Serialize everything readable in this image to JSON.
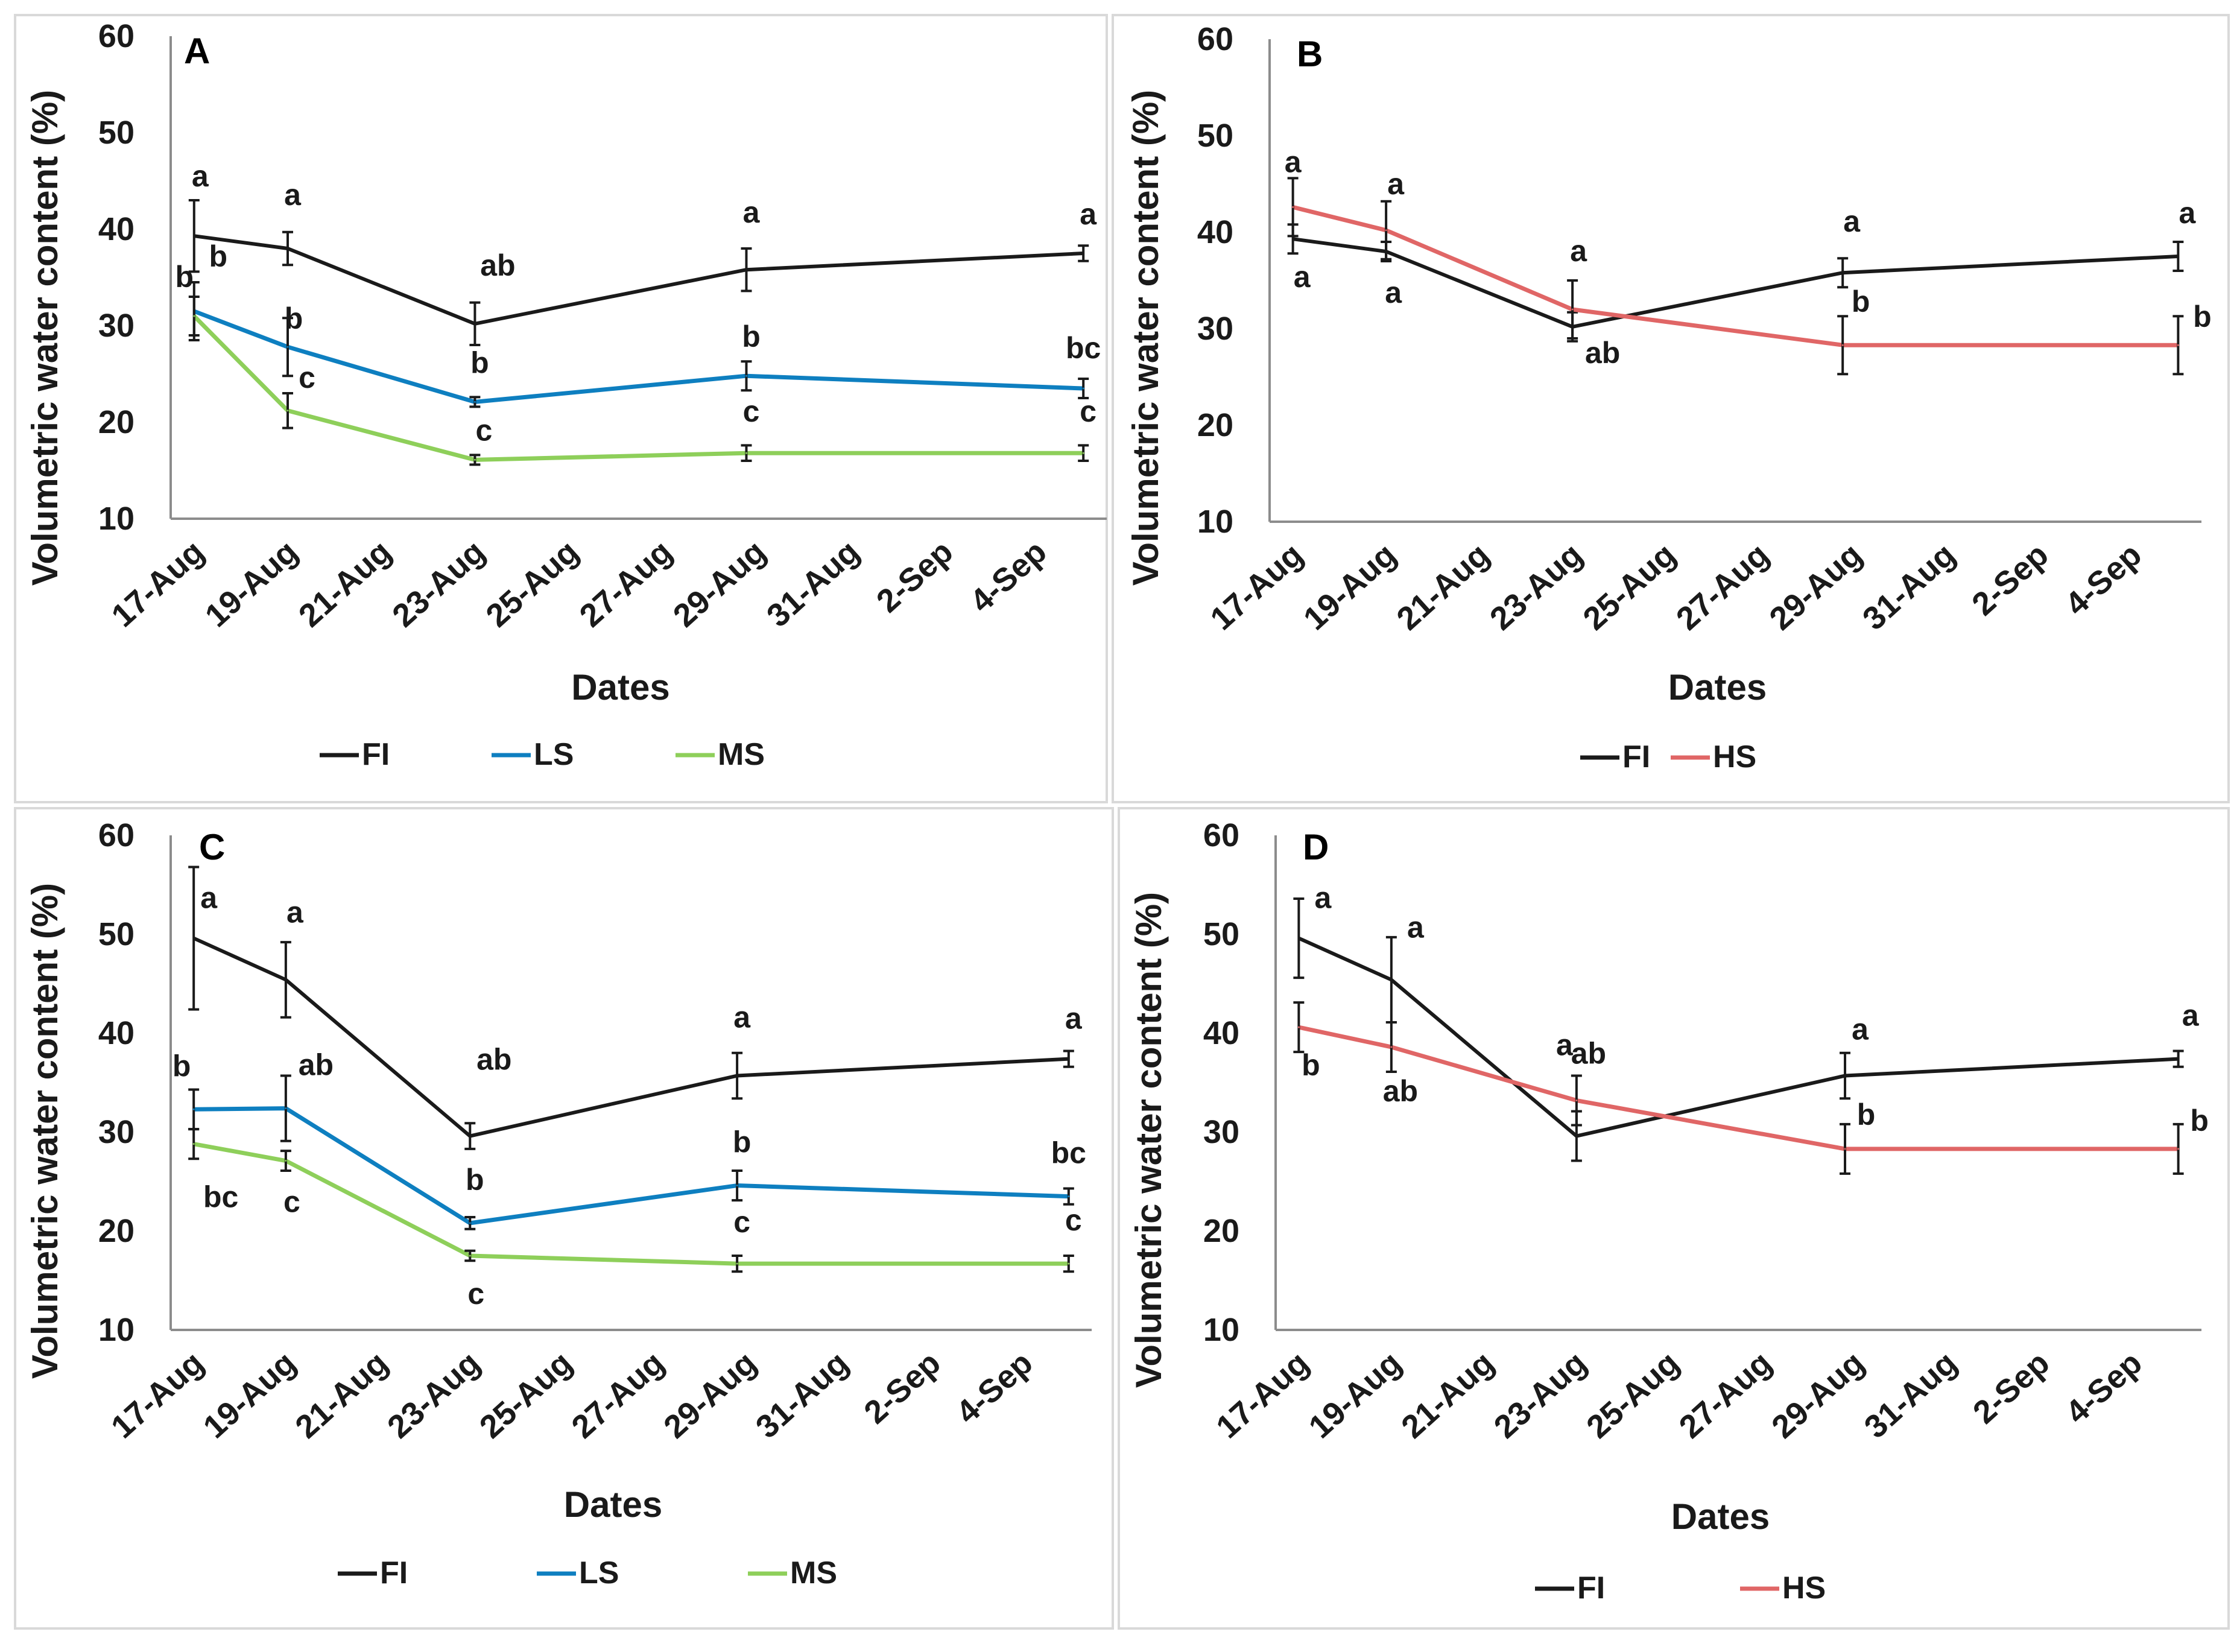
{
  "figure": {
    "description_title": ""
  },
  "chart_data": [
    {
      "panel": "A",
      "type": "line",
      "xlabel": "Dates",
      "ylabel": "Volumetric water content (%)",
      "ylim": [
        10,
        60
      ],
      "yticks": [
        10,
        20,
        30,
        40,
        50,
        60
      ],
      "xticks": [
        "17-Aug",
        "19-Aug",
        "21-Aug",
        "23-Aug",
        "25-Aug",
        "27-Aug",
        "29-Aug",
        "31-Aug",
        "2-Sep",
        "4-Sep"
      ],
      "xdays": [
        17,
        19,
        21,
        23,
        25,
        27,
        29,
        31,
        33,
        35
      ],
      "xlim_days": [
        16.5,
        36.5
      ],
      "legend": [
        "FI",
        "LS",
        "MS"
      ],
      "series": [
        {
          "name": "FI",
          "color": "#1a1a1a",
          "x": [
            17,
            19,
            23,
            28.8,
            36
          ],
          "y": [
            39.3,
            38.0,
            30.2,
            35.8,
            37.5
          ],
          "err": [
            3.7,
            1.7,
            2.2,
            2.2,
            0.8
          ],
          "letters": [
            "a",
            "a",
            "ab",
            "a",
            "a"
          ]
        },
        {
          "name": "LS",
          "color": "#0e7fc0",
          "x": [
            17,
            19,
            23,
            28.8,
            36
          ],
          "y": [
            31.5,
            27.8,
            22.1,
            24.8,
            23.5
          ],
          "err": [
            3.0,
            3.0,
            0.5,
            1.5,
            1.0
          ],
          "letters": [
            "b",
            "b",
            "b",
            "b",
            "bc"
          ]
        },
        {
          "name": "MS",
          "color": "#8ecf5a",
          "x": [
            17,
            19,
            23,
            28.8,
            36
          ],
          "y": [
            31.0,
            21.2,
            16.1,
            16.8,
            16.8
          ],
          "err": [
            2.0,
            1.8,
            0.5,
            0.8,
            0.8
          ],
          "letters": [
            "b",
            "c",
            "c",
            "c",
            "c"
          ]
        }
      ]
    },
    {
      "panel": "B",
      "type": "line",
      "xlabel": "Dates",
      "ylabel": "Volumetric water content (%)",
      "ylim": [
        10,
        60
      ],
      "yticks": [
        10,
        20,
        30,
        40,
        50,
        60
      ],
      "xticks": [
        "17-Aug",
        "19-Aug",
        "21-Aug",
        "23-Aug",
        "25-Aug",
        "27-Aug",
        "29-Aug",
        "31-Aug",
        "2-Sep",
        "4-Sep"
      ],
      "xdays": [
        17,
        19,
        21,
        23,
        25,
        27,
        29,
        31,
        33,
        35
      ],
      "xlim_days": [
        16.5,
        36.5
      ],
      "legend": [
        "FI",
        "HS"
      ],
      "series": [
        {
          "name": "FI",
          "color": "#1a1a1a",
          "x": [
            17,
            19,
            23,
            28.8,
            36
          ],
          "y": [
            39.3,
            38.0,
            30.2,
            35.8,
            37.5
          ],
          "err": [
            1.5,
            1.0,
            1.5,
            1.5,
            1.5
          ],
          "letters": [
            "a",
            "a",
            "ab",
            "a",
            "a"
          ]
        },
        {
          "name": "HS",
          "color": "#e06666",
          "x": [
            17,
            19,
            23,
            28.8,
            36
          ],
          "y": [
            42.6,
            40.2,
            32.0,
            28.3,
            28.3
          ],
          "err": [
            3.0,
            3.0,
            3.0,
            3.0,
            3.0
          ],
          "letters": [
            "a",
            "a",
            "a",
            "b",
            "b"
          ]
        }
      ]
    },
    {
      "panel": "C",
      "type": "line",
      "xlabel": "Dates",
      "ylabel": "Volumetric water content (%)",
      "ylim": [
        10,
        60
      ],
      "yticks": [
        10,
        20,
        30,
        40,
        50,
        60
      ],
      "xticks": [
        "17-Aug",
        "19-Aug",
        "21-Aug",
        "23-Aug",
        "25-Aug",
        "27-Aug",
        "29-Aug",
        "31-Aug",
        "2-Sep",
        "4-Sep"
      ],
      "xdays": [
        17,
        19,
        21,
        23,
        25,
        27,
        29,
        31,
        33,
        35
      ],
      "xlim_days": [
        16.5,
        36.5
      ],
      "legend": [
        "FI",
        "LS",
        "MS"
      ],
      "series": [
        {
          "name": "FI",
          "color": "#1a1a1a",
          "x": [
            17,
            19,
            23,
            28.8,
            36
          ],
          "y": [
            49.6,
            45.4,
            29.6,
            35.7,
            37.4
          ],
          "err": [
            7.2,
            3.8,
            1.3,
            2.3,
            0.8
          ],
          "letters": [
            "a",
            "a",
            "ab",
            "a",
            "a"
          ]
        },
        {
          "name": "LS",
          "color": "#0e7fc0",
          "x": [
            17,
            19,
            23,
            28.8,
            36
          ],
          "y": [
            32.3,
            32.4,
            20.8,
            24.6,
            23.5
          ],
          "err": [
            2.0,
            3.3,
            0.6,
            1.5,
            0.8
          ],
          "letters": [
            "b",
            "ab",
            "b",
            "b",
            "bc"
          ]
        },
        {
          "name": "MS",
          "color": "#8ecf5a",
          "x": [
            17,
            19,
            23,
            28.8,
            36
          ],
          "y": [
            28.8,
            27.1,
            17.5,
            16.7,
            16.7
          ],
          "err": [
            1.5,
            1.0,
            0.5,
            0.8,
            0.8
          ],
          "letters": [
            "bc",
            "c",
            "c",
            "c",
            "c"
          ]
        }
      ]
    },
    {
      "panel": "D",
      "type": "line",
      "xlabel": "Dates",
      "ylabel": "Volumetric water content (%)",
      "ylim": [
        10,
        60
      ],
      "yticks": [
        10,
        20,
        30,
        40,
        50,
        60
      ],
      "xticks": [
        "17-Aug",
        "19-Aug",
        "21-Aug",
        "23-Aug",
        "25-Aug",
        "27-Aug",
        "29-Aug",
        "31-Aug",
        "2-Sep",
        "4-Sep"
      ],
      "xdays": [
        17,
        19,
        21,
        23,
        25,
        27,
        29,
        31,
        33,
        35
      ],
      "xlim_days": [
        16.5,
        36.5
      ],
      "legend": [
        "FI",
        "HS"
      ],
      "series": [
        {
          "name": "FI",
          "color": "#1a1a1a",
          "x": [
            17,
            19,
            23,
            28.8,
            36
          ],
          "y": [
            49.6,
            45.4,
            29.6,
            35.7,
            37.4
          ],
          "err": [
            4.0,
            4.3,
            2.5,
            2.3,
            0.8
          ],
          "letters": [
            "a",
            "a",
            "ab",
            "a",
            "a"
          ]
        },
        {
          "name": "HS",
          "color": "#e06666",
          "x": [
            17,
            19,
            23,
            28.8,
            36
          ],
          "y": [
            40.6,
            38.6,
            33.2,
            28.3,
            28.3
          ],
          "err": [
            2.5,
            2.5,
            2.5,
            2.5,
            2.5
          ],
          "letters": [
            "b",
            "ab",
            "a",
            "b",
            "b"
          ]
        }
      ]
    }
  ]
}
